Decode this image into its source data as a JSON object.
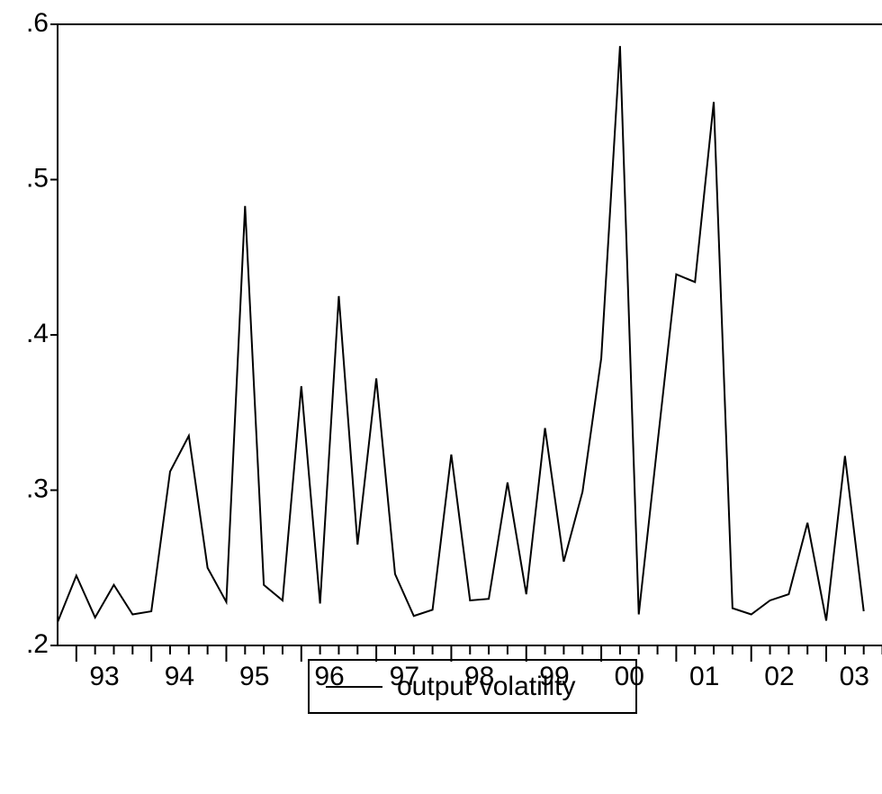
{
  "chart_data": {
    "type": "line",
    "x_tick_labels": [
      "93",
      "94",
      "95",
      "96",
      "97",
      "98",
      "99",
      "00",
      "01",
      "02",
      "03"
    ],
    "series": [
      {
        "name": "output volatility",
        "color": "#000000",
        "values": [
          0.215,
          0.245,
          0.218,
          0.239,
          0.22,
          0.222,
          0.312,
          0.335,
          0.25,
          0.228,
          0.483,
          0.239,
          0.229,
          0.367,
          0.227,
          0.425,
          0.265,
          0.372,
          0.246,
          0.219,
          0.223,
          0.323,
          0.229,
          0.23,
          0.305,
          0.233,
          0.34,
          0.254,
          0.299,
          0.385,
          0.586,
          0.22,
          0.33,
          0.439,
          0.434,
          0.55,
          0.224,
          0.22,
          0.229,
          0.233,
          0.279,
          0.216,
          0.322,
          0.222
        ]
      }
    ],
    "ylim": [
      0.2,
      0.6
    ],
    "yticks": [
      {
        "value": 0.2,
        "label": ".2"
      },
      {
        "value": 0.3,
        "label": ".3"
      },
      {
        "value": 0.4,
        "label": ".4"
      },
      {
        "value": 0.5,
        "label": ".5"
      },
      {
        "value": 0.6,
        "label": ".6"
      }
    ],
    "grid": false
  }
}
